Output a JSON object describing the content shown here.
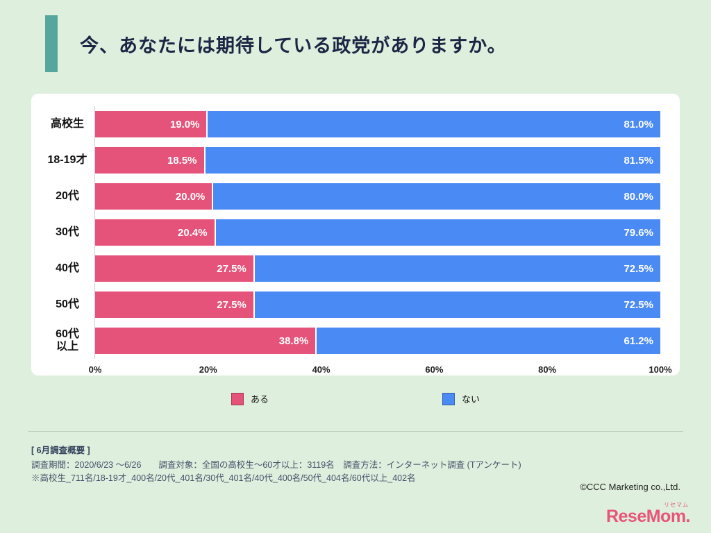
{
  "page": {
    "title": "今、あなたには期待している政党がありますか。"
  },
  "colors": {
    "page_background": "#def0dd",
    "accent_teal": "#55a79d",
    "title_text": "#1c2544",
    "bar_pink": "#e5537a",
    "bar_blue": "#4a8af4",
    "logo_pink": "#e8537a"
  },
  "chart_data": {
    "type": "bar",
    "orientation": "horizontal",
    "stacked": true,
    "title": "今、あなたには期待している政党がありますか。",
    "categories": [
      "高校生",
      "18-19才",
      "20代",
      "30代",
      "40代",
      "50代",
      "60代\n以上"
    ],
    "series": [
      {
        "name": "ある",
        "color": "#e5537a",
        "values": [
          19.0,
          18.5,
          20.0,
          20.4,
          27.5,
          27.5,
          38.8
        ]
      },
      {
        "name": "ない",
        "color": "#4a8af4",
        "values": [
          81.0,
          81.5,
          80.0,
          79.6,
          72.5,
          72.5,
          61.2
        ]
      }
    ],
    "value_label_format": "percent-one-decimal",
    "x_ticks": [
      "0%",
      "20%",
      "40%",
      "60%",
      "80%",
      "100%"
    ],
    "xlim": [
      0,
      100
    ],
    "grid": false,
    "legend_position": "bottom"
  },
  "footer": {
    "survey_header": "[ 6月調査概要 ]",
    "survey_line1": "調査期間：2020/6/23 〜6/26　　調査対象：全国の高校生〜60才以上：3119名　調査方法：インターネット調査 (Tアンケート)",
    "survey_line2": "※高校生_711名/18-19才_400名/20代_401名/30代_401名/40代_400名/50代_404名/60代以上_402名",
    "copyright": "©CCC Marketing co.,Ltd."
  },
  "logo": {
    "text": "ReseMom.",
    "subtext": "リセマム"
  }
}
